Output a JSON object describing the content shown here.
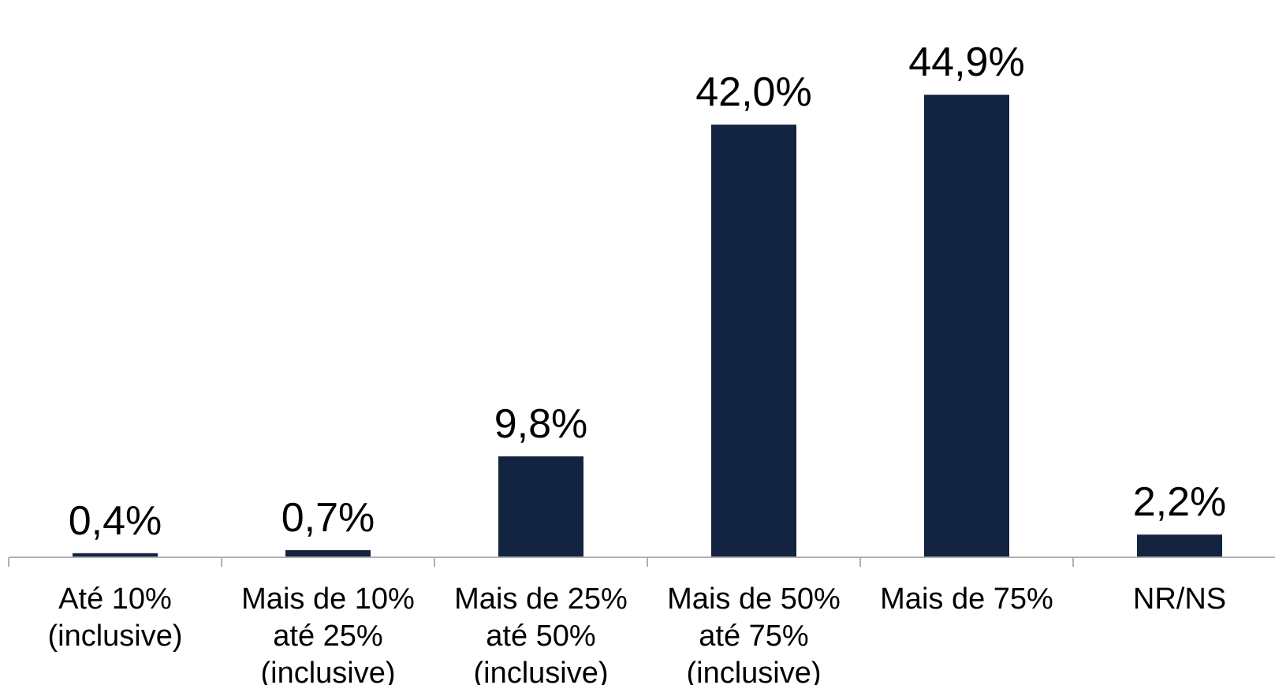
{
  "chart_data": {
    "type": "bar",
    "categories": [
      [
        "Até 10%",
        "(inclusive)"
      ],
      [
        "Mais de 10%",
        "até 25%",
        "(inclusive)"
      ],
      [
        "Mais de 25%",
        "até 50%",
        "(inclusive)"
      ],
      [
        "Mais de 50%",
        "até 75%",
        "(inclusive)"
      ],
      [
        "Mais de 75%"
      ],
      [
        "NR/NS"
      ]
    ],
    "values": [
      0.4,
      0.7,
      9.8,
      42.0,
      44.9,
      2.2
    ],
    "data_labels": [
      "0,4%",
      "0,7%",
      "9,8%",
      "42,0%",
      "44,9%",
      "2,2%"
    ],
    "ylim": [
      0,
      50
    ],
    "grid": false,
    "legend": "none",
    "colors": {
      "bar": "#12243f",
      "axis": "#b0b0b0",
      "text": "#000000"
    }
  }
}
